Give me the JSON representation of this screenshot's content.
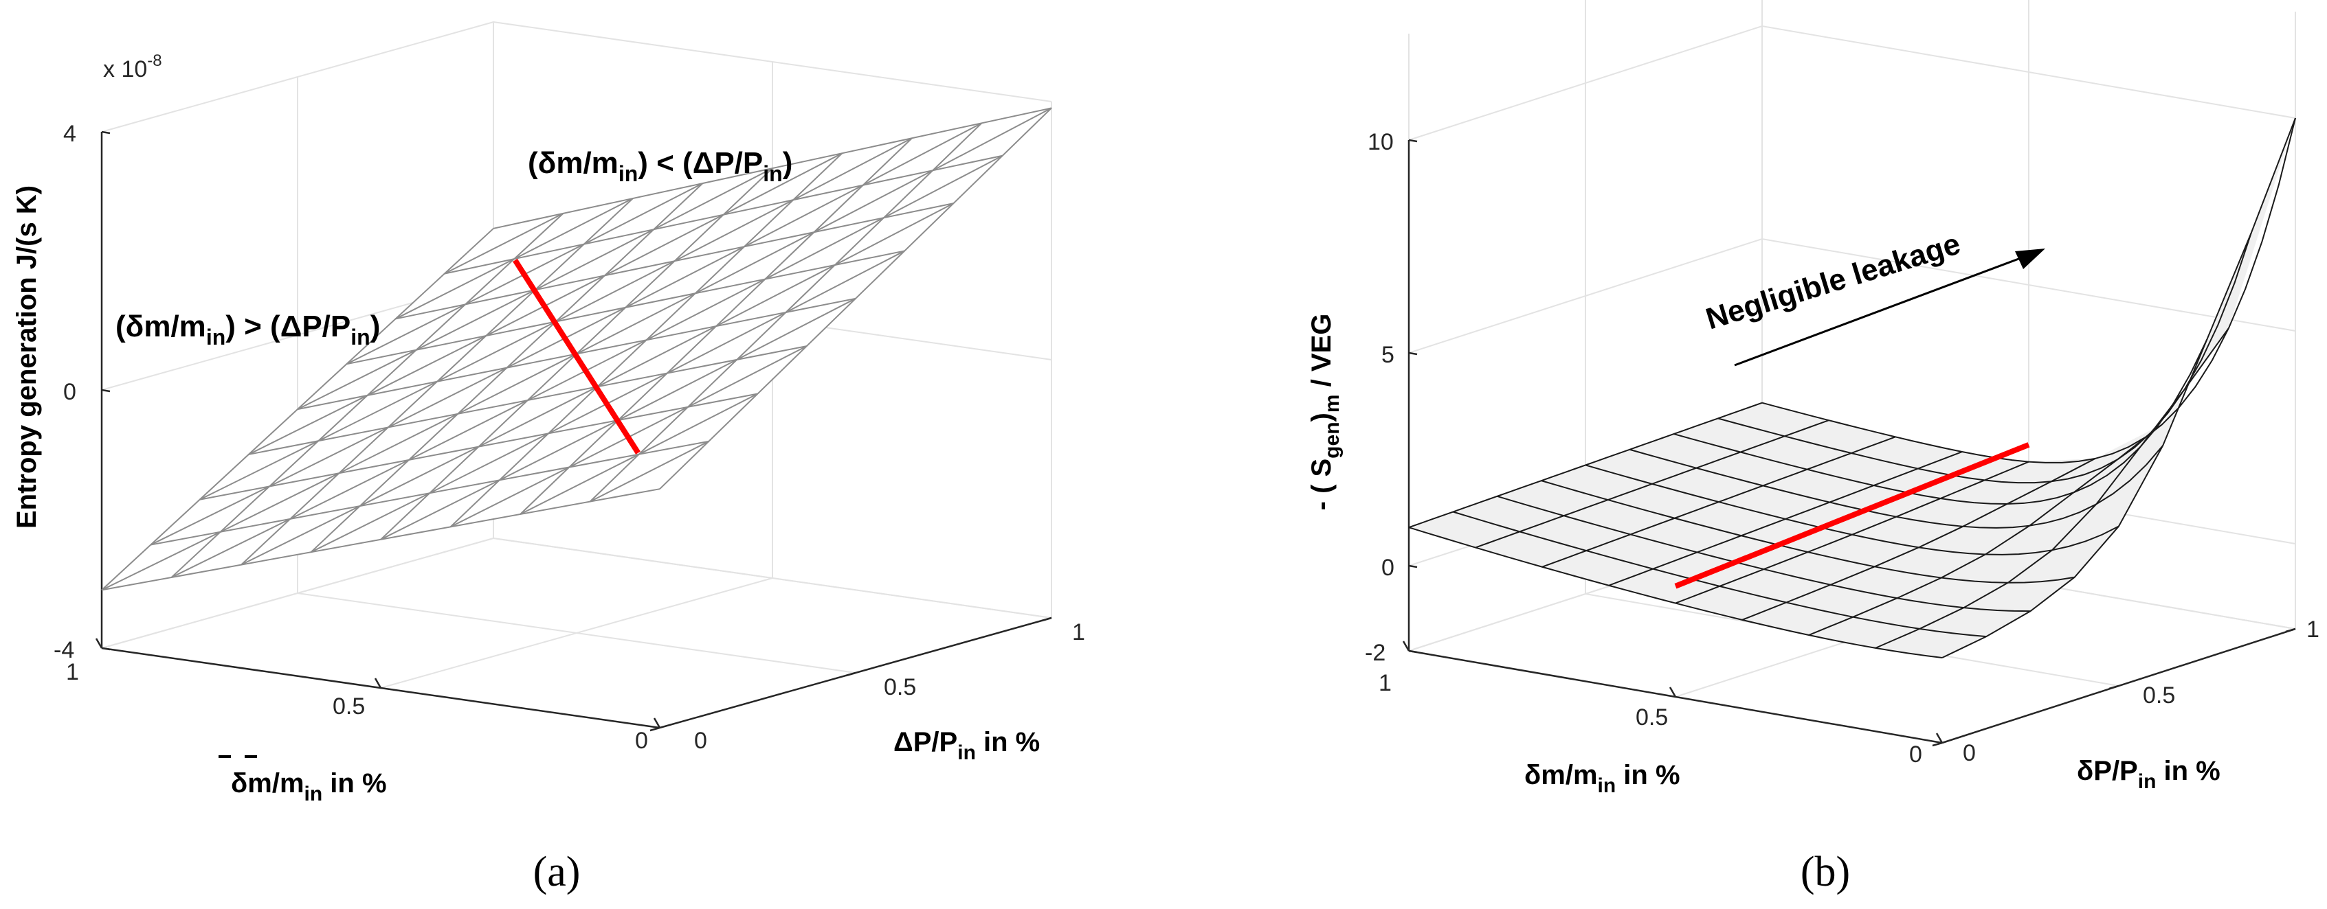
{
  "chart_data": [
    {
      "type": "surface",
      "panel_label": "(a)",
      "exponent_label": "x 10",
      "exponent_power": "-8",
      "zlabel": "Entropy generation J/(s K)",
      "xlabel": {
        "base": "δm/m",
        "sub": "in",
        "tail": " in %"
      },
      "ylabel": {
        "base": "ΔP/P",
        "sub": "in",
        "tail": " in %"
      },
      "z_ticks": [
        "4",
        "0",
        "-4"
      ],
      "x_ticks": [
        "1",
        "0.5",
        "0"
      ],
      "y_ticks": [
        "0",
        "0.5",
        "1"
      ],
      "xlim": [
        0,
        1
      ],
      "ylim": [
        0,
        1
      ],
      "zlim": [
        -4,
        4
      ],
      "grid": true,
      "surface_color": "#ffffff",
      "mesh_color": "#8c8c8c",
      "highlight_color": "#ff0000",
      "annotations": [
        {
          "parts": [
            "(δm/m",
            "in",
            ") <  (ΔP/P",
            "in",
            ")"
          ]
        },
        {
          "parts": [
            "(δm/m",
            "in",
            ") >  (ΔP/P",
            "in",
            ")"
          ]
        }
      ],
      "corners_z": {
        "x1_y0": -3.1,
        "x0_y0": -0.3,
        "x1_y1": 0.8,
        "x0_y1": 3.9
      }
    },
    {
      "type": "surface",
      "panel_label": "(b)",
      "zlabel": {
        "pre": "- ( S",
        "sub1": "gen",
        "mid": ")",
        "sub2": "m",
        "tail": " / VEG"
      },
      "xlabel": {
        "base": "δm/m",
        "sub": "in",
        "tail": " in %"
      },
      "ylabel": {
        "base": "δP/P",
        "sub": "in",
        "tail": " in %"
      },
      "z_ticks": [
        "10",
        "5",
        "0",
        "-2"
      ],
      "x_ticks": [
        "1",
        "0.5",
        "0"
      ],
      "y_ticks": [
        "0",
        "0.5",
        "1"
      ],
      "xlim": [
        0,
        1
      ],
      "ylim": [
        0,
        1
      ],
      "zlim": [
        -2,
        10
      ],
      "grid": true,
      "surface_color": "#f0f0f0",
      "mesh_color": "#1a1a1a",
      "highlight_color": "#ff0000",
      "annotation": "Negligible leakage",
      "edge_profile_z": [
        0.5,
        0.6,
        0.8,
        1.2,
        2.0,
        3.5,
        5.6,
        7.7,
        10.0
      ]
    }
  ]
}
